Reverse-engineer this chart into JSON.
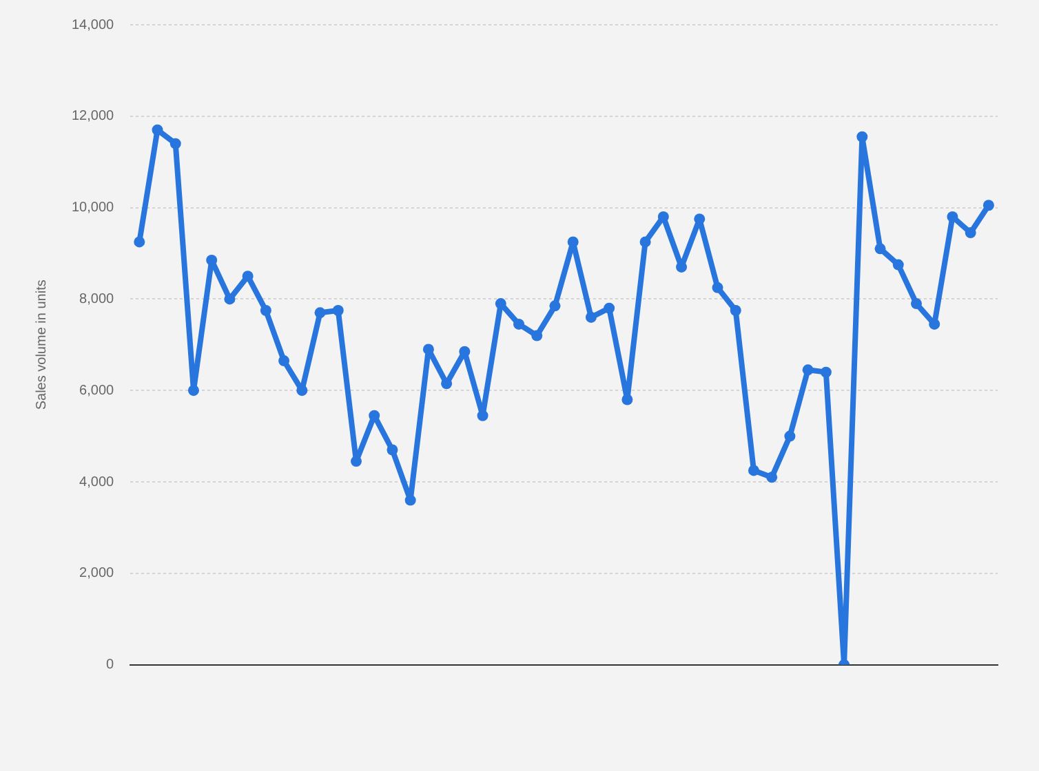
{
  "chart_data": {
    "type": "line",
    "ylabel": "Sales volume in units",
    "categories": [
      null,
      null,
      null,
      null,
      null,
      null,
      null,
      null,
      null,
      null,
      null,
      null,
      null,
      null,
      null,
      null,
      null,
      null,
      null,
      null,
      null,
      null,
      null,
      null,
      null,
      null,
      null,
      null,
      null,
      null,
      null,
      null,
      null,
      null,
      null,
      null,
      null,
      null,
      null,
      null,
      null,
      null,
      null,
      null,
      null,
      null,
      null,
      null
    ],
    "series": [
      {
        "color": "#2876dd",
        "values": [
          9250,
          11700,
          11400,
          6000,
          8850,
          8000,
          8500,
          7750,
          6650,
          6000,
          7700,
          7750,
          4450,
          5450,
          4700,
          3600,
          6900,
          6150,
          6850,
          5450,
          7900,
          7450,
          7200,
          7850,
          9250,
          7600,
          7800,
          5800,
          9250,
          9800,
          8700,
          9750,
          8250,
          7750,
          4250,
          4100,
          5000,
          6450,
          6400,
          0,
          11550,
          9100,
          8750,
          7900,
          7450,
          9800,
          9450,
          10050
        ]
      }
    ],
    "ylim": [
      0,
      14000
    ],
    "yticks": [
      0,
      {
        "value": 2000,
        "label": "2,000"
      },
      {
        "value": 4000,
        "label": "4,000"
      },
      {
        "value": 6000,
        "label": "6,000"
      },
      {
        "value": 8000,
        "label": "8,000"
      },
      {
        "value": 10000,
        "label": "10,000"
      },
      {
        "value": 12000,
        "label": "12,000"
      },
      {
        "value": 14000,
        "label": "14,000"
      }
    ],
    "grid": "y",
    "legend": false,
    "marker": "circle",
    "line_style": "solid"
  }
}
